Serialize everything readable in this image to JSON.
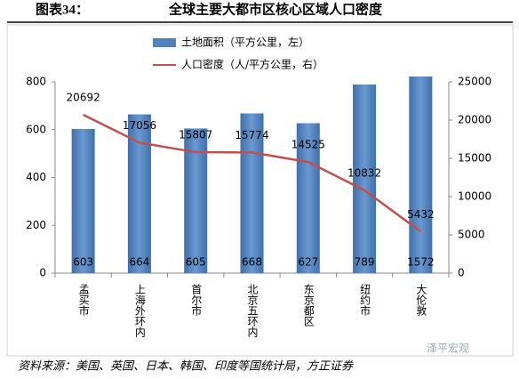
{
  "header": {
    "label": "图表34：",
    "title": "全球主要大都市区核心区域人口密度"
  },
  "chart_data": {
    "type": "bar",
    "categories": [
      "孟买市",
      "上海外环内",
      "首尔市",
      "北京五环内",
      "东京都区",
      "纽约市",
      "大伦敦"
    ],
    "series": [
      {
        "name": "土地面积（平方公里，左）",
        "type": "bar",
        "color": "#4f81bd",
        "values": [
          603,
          664,
          605,
          668,
          627,
          789,
          1572
        ]
      },
      {
        "name": "人口密度（人/平方公里，右）",
        "type": "line",
        "axis": "y2",
        "color": "#c0504d",
        "values": [
          20692,
          17056,
          15807,
          15774,
          14525,
          10832,
          5432
        ]
      }
    ],
    "ylim": [
      0,
      800
    ],
    "yticks": [
      0,
      200,
      400,
      600,
      800
    ],
    "y2lim": [
      0,
      25000
    ],
    "y2ticks": [
      0,
      5000,
      10000,
      15000,
      20000,
      25000
    ]
  },
  "source": "资料来源：美国、英国、日本、韩国、印度等国统计局，方正证券",
  "watermark": "泽平宏观"
}
